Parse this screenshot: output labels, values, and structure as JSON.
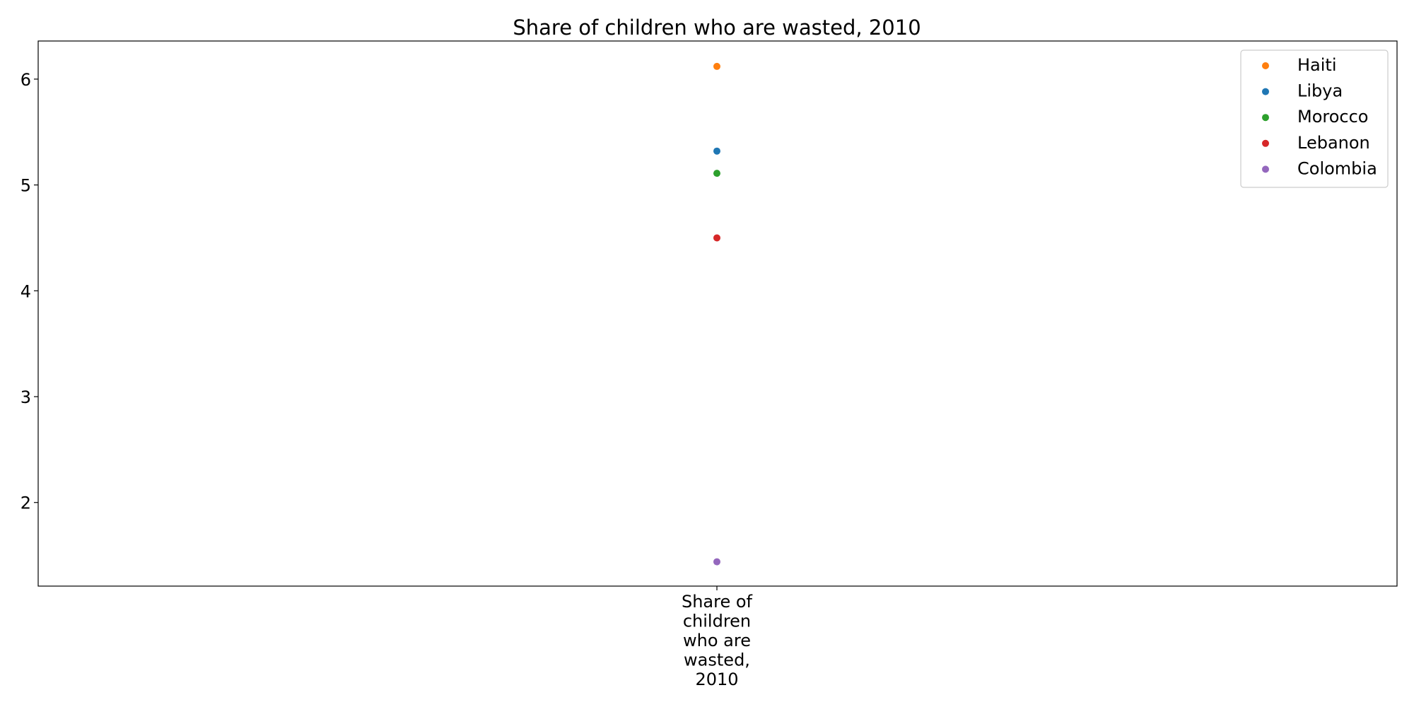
{
  "chart_data": {
    "type": "scatter",
    "title": "Share of children who are wasted, 2010",
    "xlabel": "",
    "ylabel": "",
    "categories": [
      "Share of children who are wasted, 2010"
    ],
    "category_label_lines": [
      "Share of",
      "children",
      "who are",
      "wasted,",
      "2010"
    ],
    "ylim": [
      1.21,
      6.36
    ],
    "yticks": [
      2,
      3,
      4,
      5,
      6
    ],
    "grid": false,
    "legend_position": "top-right",
    "series": [
      {
        "name": "Haiti",
        "color": "#ff7f0e",
        "values": [
          6.12
        ]
      },
      {
        "name": "Libya",
        "color": "#1f77b4",
        "values": [
          5.32
        ]
      },
      {
        "name": "Morocco",
        "color": "#2ca02c",
        "values": [
          5.11
        ]
      },
      {
        "name": "Lebanon",
        "color": "#d62728",
        "values": [
          4.5
        ]
      },
      {
        "name": "Colombia",
        "color": "#9467bd",
        "values": [
          1.44
        ]
      }
    ]
  }
}
